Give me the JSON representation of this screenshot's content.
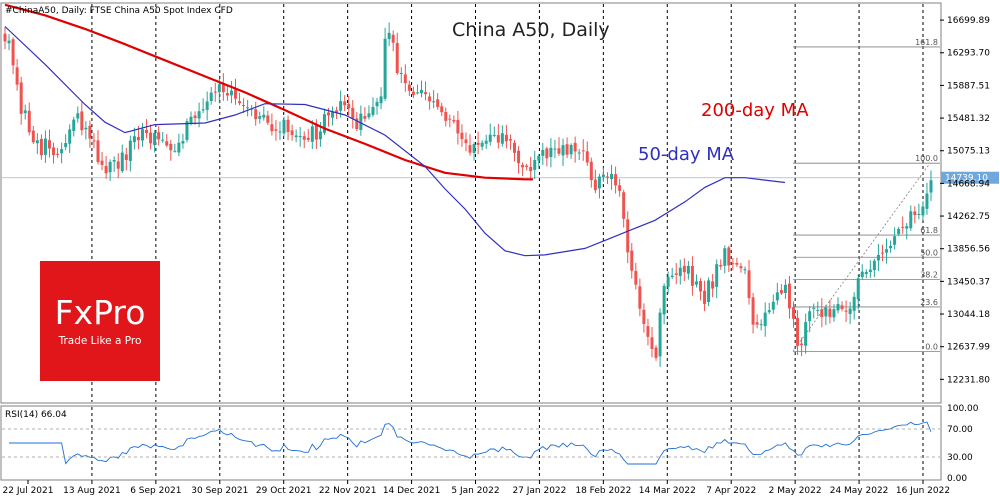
{
  "header": {
    "symbol_info": "#ChinaA50, Daily:  FTSE China A50 Spot Index CFD",
    "chart_title": "China A50, Daily",
    "rsi_label": "RSI(14) 66.04"
  },
  "annotations": {
    "ma200": "200-day MA",
    "ma50": "50-day MA"
  },
  "logo": {
    "brand": "FxPro",
    "tagline": "Trade Like a Pro"
  },
  "colors": {
    "up": "#26a69a",
    "down": "#ef5350",
    "ma200": "#e00000",
    "ma50": "#3030c0",
    "rsi": "#1e6fd9",
    "fib": "#7f7f7f",
    "logo_bg": "#e0161b",
    "price_tag": "#6fa8dc"
  },
  "chart_data": {
    "type": "candlestick",
    "price_axis": {
      "ticks": [
        "16699.89",
        "16293.70",
        "15887.51",
        "15481.32",
        "15075.13",
        "14668.94",
        "14262.75",
        "13856.56",
        "13450.37",
        "13044.18",
        "12637.99",
        "12231.80"
      ],
      "min": 11950,
      "max": 16900
    },
    "current_price": "14739.10",
    "current_price_value": 14739.1,
    "date_labels": [
      "22 Jul 2021",
      "13 Aug 2021",
      "6 Sep 2021",
      "30 Sep 2021",
      "29 Oct 2021",
      "22 Nov 2021",
      "14 Dec 2021",
      "5 Jan 2022",
      "27 Jan 2022",
      "18 Feb 2022",
      "14 Mar 2022",
      "7 Apr 2022",
      "2 May 2022",
      "24 May 2022",
      "16 Jun 2022"
    ],
    "fibonacci": {
      "low": 12580,
      "high": 14920,
      "levels": [
        {
          "ratio": 0,
          "label": "0.0"
        },
        {
          "ratio": 0.236,
          "label": "23.6"
        },
        {
          "ratio": 0.382,
          "label": "38.2"
        },
        {
          "ratio": 0.5,
          "label": "50.0"
        },
        {
          "ratio": 0.618,
          "label": "61.8"
        },
        {
          "ratio": 1,
          "label": "100.0"
        },
        {
          "ratio": 1.618,
          "label": "161.8"
        }
      ]
    },
    "ma200": [
      [
        0,
        16890
      ],
      [
        40,
        16760
      ],
      [
        80,
        16590
      ],
      [
        120,
        16400
      ],
      [
        160,
        16200
      ],
      [
        200,
        16000
      ],
      [
        240,
        15800
      ],
      [
        280,
        15580
      ],
      [
        320,
        15350
      ],
      [
        360,
        15160
      ],
      [
        400,
        14960
      ],
      [
        440,
        14800
      ],
      [
        480,
        14740
      ],
      [
        520,
        14720
      ],
      [
        528,
        14720
      ]
    ],
    "ma50": [
      [
        0,
        16620
      ],
      [
        40,
        16150
      ],
      [
        80,
        15650
      ],
      [
        100,
        15430
      ],
      [
        120,
        15300
      ],
      [
        150,
        15400
      ],
      [
        200,
        15420
      ],
      [
        230,
        15520
      ],
      [
        260,
        15660
      ],
      [
        300,
        15650
      ],
      [
        340,
        15520
      ],
      [
        380,
        15270
      ],
      [
        420,
        14880
      ],
      [
        440,
        14600
      ],
      [
        460,
        14350
      ],
      [
        480,
        14050
      ],
      [
        500,
        13830
      ],
      [
        520,
        13770
      ],
      [
        540,
        13780
      ],
      [
        560,
        13820
      ],
      [
        580,
        13860
      ],
      [
        600,
        13960
      ],
      [
        620,
        14060
      ],
      [
        650,
        14210
      ],
      [
        680,
        14440
      ],
      [
        700,
        14620
      ],
      [
        720,
        14740
      ],
      [
        740,
        14740
      ],
      [
        760,
        14710
      ],
      [
        780,
        14680
      ]
    ],
    "rsi_axis": {
      "ticks": [
        "100.00",
        "70.00",
        "30.00",
        "0.00"
      ],
      "levels": [
        70,
        30
      ]
    },
    "rsi_current": 66.04
  }
}
